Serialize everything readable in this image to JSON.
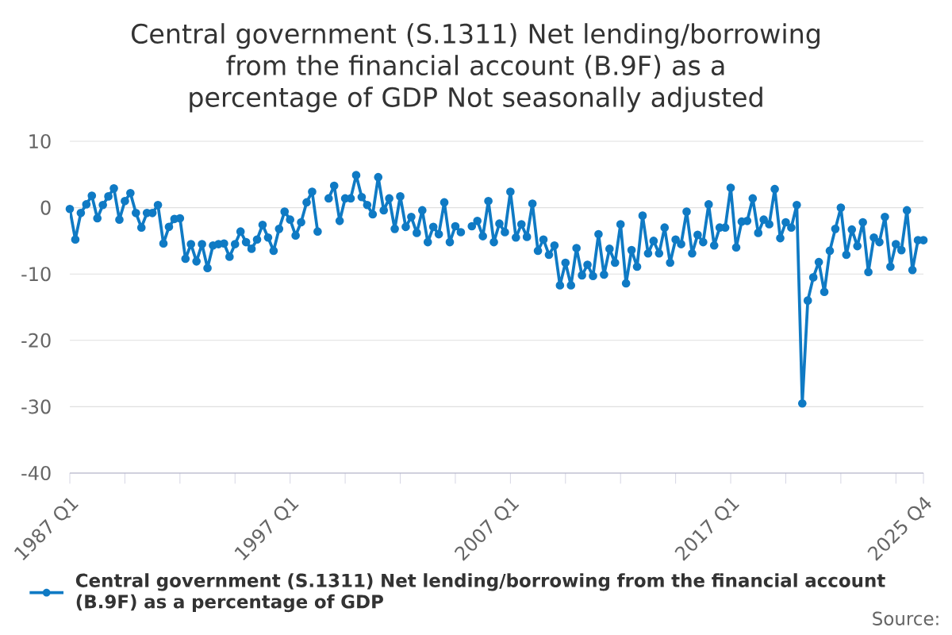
{
  "chart_data": {
    "type": "line",
    "title": "Central government (S.1311) Net lending/borrowing from the financial account (B.9F) as a percentage of GDP Not seasonally adjusted",
    "categories": [
      "1987 Q1",
      null,
      null,
      null,
      null,
      null,
      null,
      null,
      null,
      null,
      null,
      null,
      null,
      null,
      null,
      null,
      null,
      null,
      null,
      null,
      null,
      null,
      null,
      null,
      null,
      null,
      null,
      null,
      null,
      null,
      null,
      null,
      null,
      null,
      null,
      null,
      null,
      null,
      null,
      null,
      "1997 Q1",
      null,
      null,
      null,
      null,
      null,
      null,
      null,
      null,
      null,
      null,
      null,
      null,
      null,
      null,
      null,
      null,
      null,
      null,
      null,
      null,
      null,
      null,
      null,
      null,
      null,
      null,
      null,
      null,
      null,
      null,
      null,
      null,
      null,
      null,
      null,
      null,
      null,
      null,
      null,
      "2007 Q1",
      null,
      null,
      null,
      null,
      null,
      null,
      null,
      null,
      null,
      null,
      null,
      null,
      null,
      null,
      null,
      null,
      null,
      null,
      null,
      null,
      null,
      null,
      null,
      null,
      null,
      null,
      null,
      null,
      null,
      null,
      null,
      null,
      null,
      null,
      null,
      null,
      null,
      null,
      null,
      "2017 Q1",
      null,
      null,
      null,
      null,
      null,
      null,
      null,
      null,
      null,
      null,
      null,
      null,
      null,
      null,
      null,
      null,
      null,
      null,
      null,
      null,
      null,
      null,
      null,
      null,
      null,
      null,
      null,
      null,
      null,
      null,
      null,
      null,
      null,
      null,
      "2025 Q4"
    ],
    "series": [
      {
        "name": "Central government (S.1311) Net lending/borrowing from the financial account (B.9F) as a percentage of GDP",
        "color": "#0f7ac4",
        "values": [
          -0.2,
          -4.8,
          -0.8,
          0.5,
          1.8,
          -1.6,
          0.4,
          1.7,
          2.9,
          -1.8,
          1.0,
          2.2,
          -0.8,
          -3.0,
          -0.8,
          -0.8,
          0.4,
          -5.4,
          -2.9,
          -1.7,
          -1.6,
          -7.7,
          -5.5,
          -8.1,
          -5.5,
          -9.1,
          -5.7,
          -5.5,
          -5.4,
          -7.4,
          -5.5,
          -3.6,
          -5.2,
          -6.2,
          -4.8,
          -2.6,
          -4.5,
          -6.5,
          -3.2,
          -0.6,
          -1.8,
          -4.2,
          -2.2,
          0.8,
          2.4,
          -3.6,
          null,
          1.4,
          3.3,
          -2.0,
          1.4,
          1.4,
          4.9,
          1.6,
          0.4,
          -1.0,
          4.6,
          -0.4,
          1.4,
          -3.2,
          1.7,
          -2.9,
          -1.4,
          -3.8,
          -0.4,
          -5.2,
          -2.9,
          -4.0,
          0.8,
          -5.2,
          -2.8,
          -3.7,
          null,
          -2.8,
          -2.0,
          -4.3,
          1.0,
          -5.2,
          -2.4,
          -3.7,
          2.4,
          -4.5,
          -2.5,
          -4.4,
          0.6,
          -6.5,
          -4.8,
          -7.1,
          -5.7,
          -11.7,
          -8.3,
          -11.7,
          -6.1,
          -10.2,
          -8.6,
          -10.3,
          -4.0,
          -10.1,
          -6.2,
          -8.3,
          -2.5,
          -11.4,
          -6.4,
          -8.9,
          -1.2,
          -6.9,
          -5.0,
          -6.9,
          -3.0,
          -8.3,
          -4.8,
          -5.5,
          -0.6,
          -6.9,
          -4.1,
          -5.2,
          0.5,
          -5.7,
          -3.0,
          -3.0,
          3.0,
          -6.0,
          -2.1,
          -2.0,
          1.4,
          -3.8,
          -1.8,
          -2.5,
          2.8,
          -4.6,
          -2.2,
          -3.0,
          0.4,
          -29.5,
          -14.0,
          -10.5,
          -8.2,
          -12.7,
          -6.5,
          -3.2,
          0.0,
          -7.1,
          -3.3,
          -5.8,
          -2.2,
          -9.7,
          -4.5,
          -5.2,
          -1.4,
          -8.9,
          -5.5,
          -6.4,
          -0.4,
          -9.4,
          -4.9,
          -4.9
        ]
      }
    ],
    "ylim": [
      -40,
      10
    ],
    "yticks": [
      10,
      0,
      -10,
      -20,
      -30,
      -40
    ],
    "grid": "y",
    "legend": "bottom",
    "marker": "circle",
    "line_style": "solid",
    "annotations": [
      "Source:"
    ]
  }
}
